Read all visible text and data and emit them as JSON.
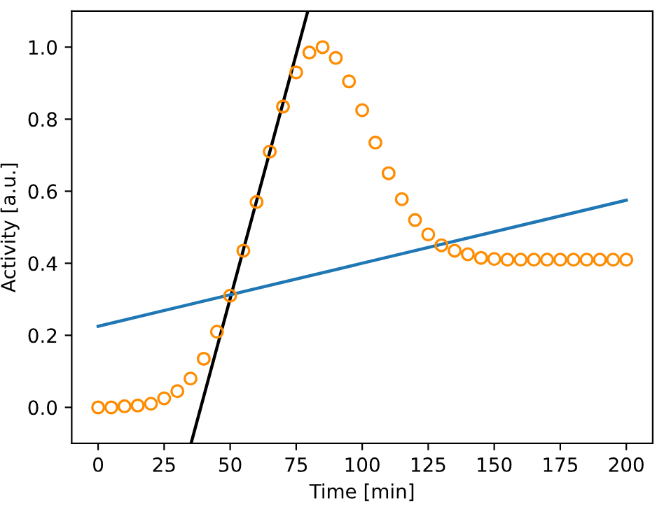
{
  "chart_data": {
    "type": "scatter",
    "xlabel": "Time [min]",
    "ylabel": "Activity [a.u.]",
    "xlim": [
      -10,
      210
    ],
    "ylim": [
      -0.1,
      1.1
    ],
    "xticks": [
      0,
      25,
      50,
      75,
      100,
      125,
      150,
      175,
      200
    ],
    "yticks": [
      {
        "value": 0,
        "label": "0.0"
      },
      0.2,
      0.4,
      0.6,
      0.8,
      {
        "value": 1,
        "label": "1.0"
      }
    ],
    "grid": false,
    "legend": false,
    "series": [
      {
        "color": "#ff8c00",
        "marker": "circle",
        "x": [
          0,
          5,
          10,
          15,
          20,
          25,
          30,
          35,
          40,
          45,
          50,
          55,
          60,
          65,
          70,
          75,
          80,
          85,
          90,
          95,
          100,
          105,
          110,
          115,
          120,
          125,
          130,
          135,
          140,
          145,
          150,
          155,
          160,
          165,
          170,
          175,
          180,
          185,
          190,
          195,
          200
        ],
        "values": [
          0,
          0,
          0.003,
          0.005,
          0.01,
          0.025,
          0.045,
          0.08,
          0.135,
          0.21,
          0.31,
          0.435,
          0.57,
          0.71,
          0.835,
          0.93,
          0.985,
          1.0,
          0.97,
          0.905,
          0.825,
          0.735,
          0.65,
          0.578,
          0.52,
          0.48,
          0.45,
          0.435,
          0.425,
          0.415,
          0.412,
          0.41,
          0.41,
          0.41,
          0.41,
          0.41,
          0.41,
          0.41,
          0.41,
          0.41,
          0.41
        ]
      },
      {
        "type": "line",
        "color": "#000000",
        "x": [
          35.2,
          79.4
        ],
        "values": [
          -0.1,
          1.1
        ]
      },
      {
        "type": "line",
        "color": "#1f77b4",
        "x": [
          0,
          200
        ],
        "values": [
          0.225,
          0.575
        ]
      }
    ]
  }
}
